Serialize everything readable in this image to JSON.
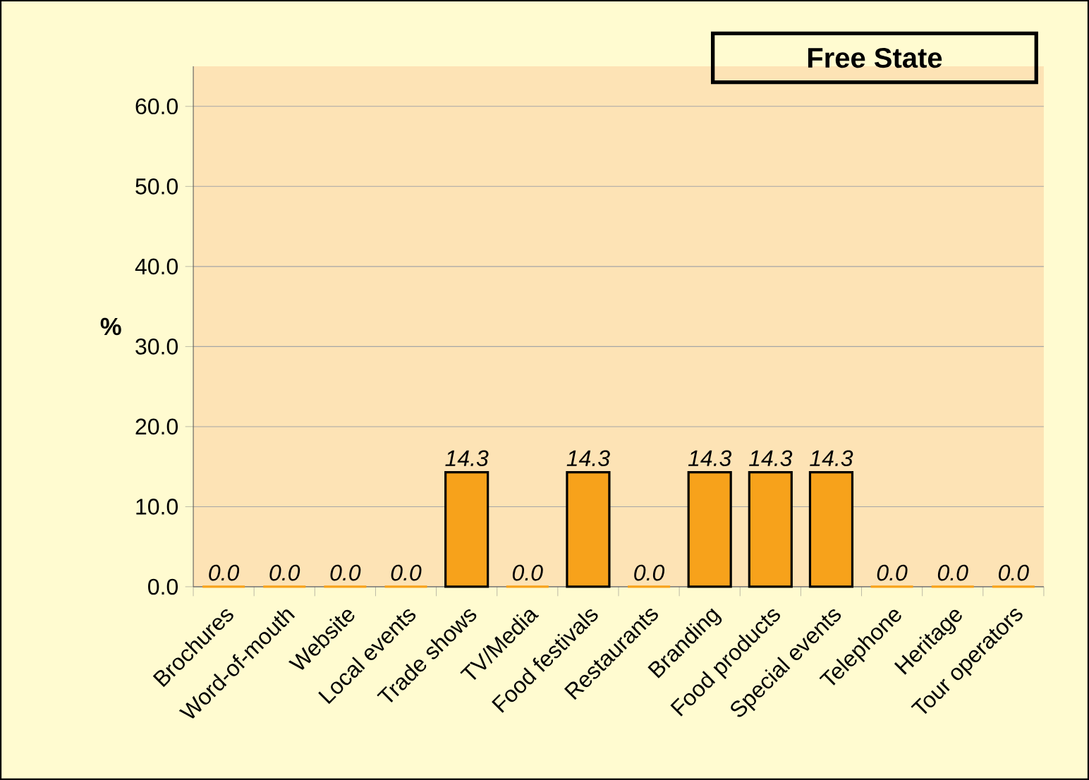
{
  "chart_data": {
    "type": "bar",
    "title": "Free State",
    "ylabel": "%",
    "categories": [
      "Brochures",
      "Word-of-mouth",
      "Website",
      "Local events",
      "Trade shows",
      "TV/Media",
      "Food festivals",
      "Restaurants",
      "Branding",
      "Food products",
      "Special events",
      "Telephone",
      "Heritage",
      "Tour operators"
    ],
    "values": [
      0,
      0,
      0,
      0,
      14.3,
      0,
      14.3,
      0,
      14.3,
      14.3,
      14.3,
      0,
      0,
      0
    ],
    "value_labels": [
      "0.0",
      "0.0",
      "0.0",
      "0.0",
      "14.3",
      "0.0",
      "14.3",
      "0.0",
      "14.3",
      "14.3",
      "14.3",
      "0.0",
      "0.0",
      "0.0"
    ],
    "color": "#f7a21b",
    "ylim": [
      0,
      65
    ],
    "yticks": [
      {
        "value": 0,
        "label": "0.0"
      },
      {
        "value": 10,
        "label": "10.0"
      },
      {
        "value": 20,
        "label": "20.0"
      },
      {
        "value": 30,
        "label": "30.0"
      },
      {
        "value": 40,
        "label": "40.0"
      },
      {
        "value": 50,
        "label": "50.0"
      },
      {
        "value": 60,
        "label": "60.0"
      }
    ],
    "grid": "y"
  }
}
